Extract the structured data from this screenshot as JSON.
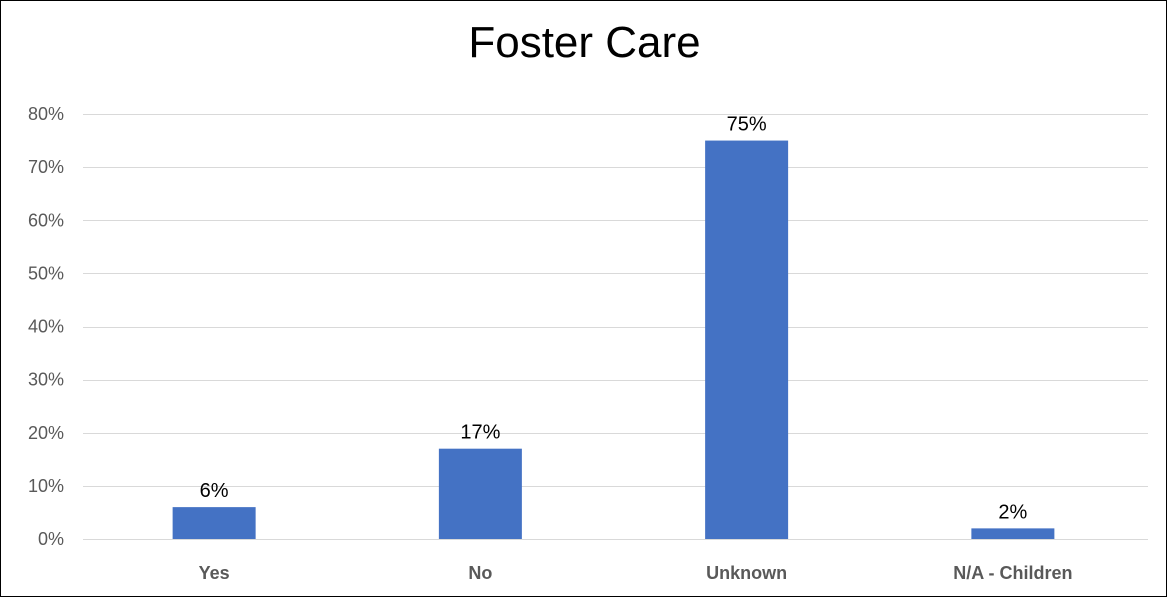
{
  "chart_data": {
    "type": "bar",
    "title": "Foster Care",
    "categories": [
      "Yes",
      "No",
      "Unknown",
      "N/A - Children"
    ],
    "values": [
      6,
      17,
      75,
      2
    ],
    "data_labels": [
      "6%",
      "17%",
      "75%",
      "2%"
    ],
    "xlabel": "",
    "ylabel": "",
    "ylim": [
      0,
      80
    ],
    "yticks": [
      0,
      10,
      20,
      30,
      40,
      50,
      60,
      70,
      80
    ],
    "ytick_labels": [
      "0%",
      "10%",
      "20%",
      "30%",
      "40%",
      "50%",
      "60%",
      "70%",
      "80%"
    ],
    "grid": true,
    "legend": "none",
    "colors": {
      "bar": "#4472C4",
      "grid": "#D9D9D9",
      "tick_text": "#595959"
    }
  }
}
